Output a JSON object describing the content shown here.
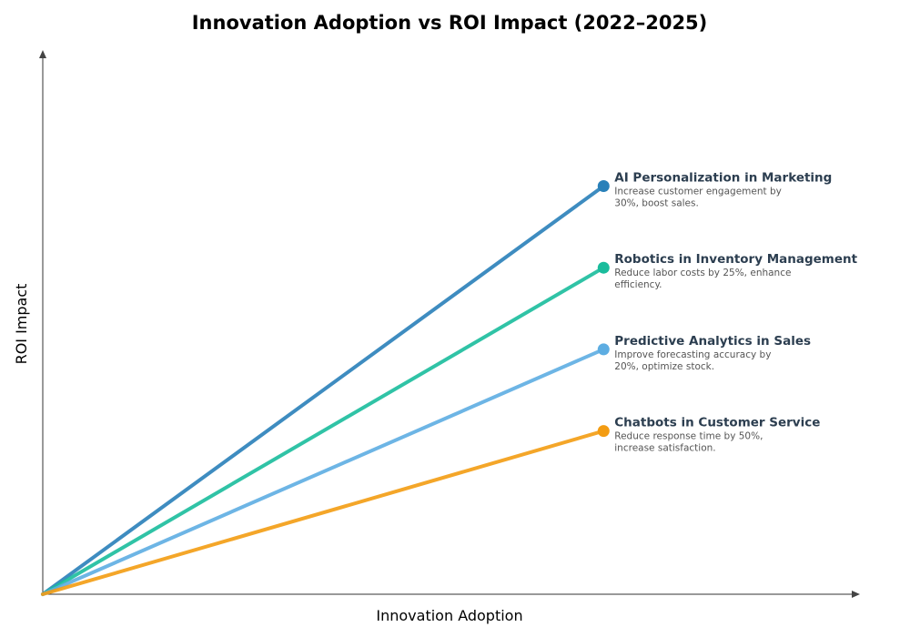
{
  "chart_data": {
    "type": "line",
    "title": "Innovation Adoption vs ROI Impact (2022–2025)",
    "xlabel": "Innovation Adoption",
    "ylabel": "ROI Impact",
    "xlim": [
      0,
      10.2
    ],
    "ylim": [
      0,
      10
    ],
    "grid": false,
    "ticks": false,
    "series": [
      {
        "name": "AI Personalization in Marketing",
        "desc": [
          "Increase customer engagement by",
          "30%, boost sales."
        ],
        "color": "#2980b9",
        "x": [
          0,
          7
        ],
        "y": [
          0,
          7.5
        ]
      },
      {
        "name": "Robotics in Inventory Management",
        "desc": [
          "Reduce labor costs by 25%, enhance",
          "efficiency."
        ],
        "color": "#1abc9c",
        "x": [
          0,
          7
        ],
        "y": [
          0,
          6
        ]
      },
      {
        "name": "Predictive Analytics in Sales",
        "desc": [
          "Improve forecasting accuracy by",
          "20%, optimize stock."
        ],
        "color": "#5dade2",
        "x": [
          0,
          7
        ],
        "y": [
          0,
          4.5
        ]
      },
      {
        "name": "Chatbots in Customer Service",
        "desc": [
          "Reduce response time by 50%,",
          "increase satisfaction."
        ],
        "color": "#f39c12",
        "x": [
          0,
          7
        ],
        "y": [
          0,
          3
        ]
      }
    ]
  }
}
